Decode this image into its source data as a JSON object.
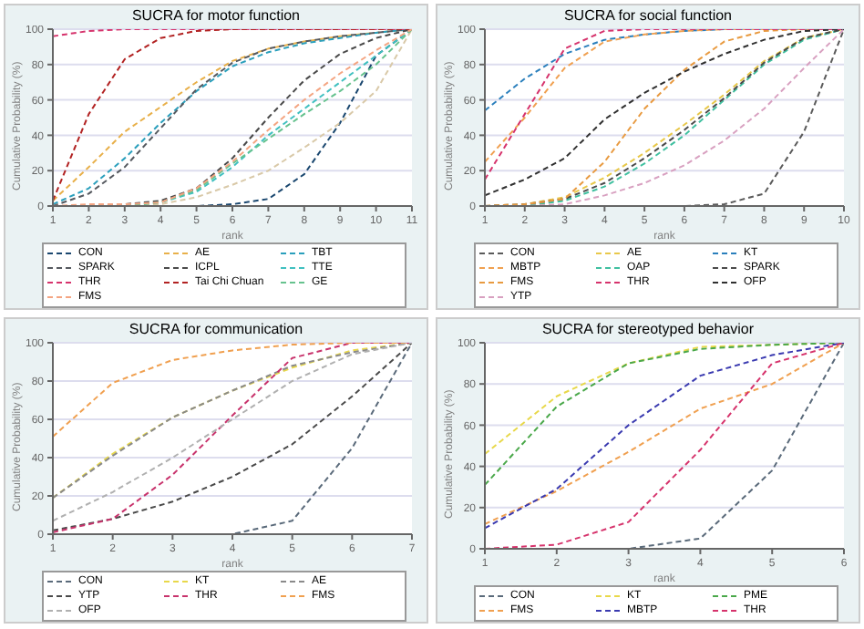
{
  "chart_data": [
    {
      "type": "line",
      "title": "SUCRA for motor function",
      "xlabel": "rank",
      "ylabel": "Cumulative Probability (%)",
      "x": [
        1,
        2,
        3,
        4,
        5,
        6,
        7,
        8,
        9,
        10,
        11
      ],
      "xlim": [
        1,
        11
      ],
      "xticks": [
        1,
        2,
        3,
        4,
        5,
        6,
        7,
        8,
        9,
        10,
        11
      ],
      "ylim": [
        0,
        100
      ],
      "yticks": [
        0,
        20,
        40,
        60,
        80,
        100
      ],
      "grid": "y",
      "legend": "bottom",
      "line_style": "dashed",
      "marker": "none",
      "series": [
        {
          "name": "CON",
          "color": "#1a476f",
          "values": [
            0,
            0,
            0,
            0,
            0,
            1,
            4,
            18,
            47,
            85,
            100
          ]
        },
        {
          "name": "AE",
          "color": "#e8b04a",
          "values": [
            3,
            22,
            42,
            56,
            70,
            82,
            89,
            93,
            96,
            98,
            100
          ]
        },
        {
          "name": "TBT",
          "color": "#2a9fbc",
          "values": [
            1,
            10,
            27,
            47,
            65,
            79,
            87,
            92,
            95,
            98,
            100
          ]
        },
        {
          "name": "SPARK",
          "color": "#55595f",
          "values": [
            0,
            7,
            22,
            44,
            66,
            81,
            89,
            93,
            96,
            98,
            100
          ]
        },
        {
          "name": "ICPL",
          "color": "#4a4a4a",
          "values": [
            0,
            0,
            1,
            3,
            10,
            27,
            50,
            71,
            86,
            95,
            100
          ]
        },
        {
          "name": "TTE",
          "color": "#40c0c0",
          "values": [
            0,
            0,
            0,
            2,
            8,
            22,
            40,
            55,
            70,
            85,
            100
          ]
        },
        {
          "name": "THR",
          "color": "#d6336c",
          "values": [
            96,
            99,
            100,
            100,
            100,
            100,
            100,
            100,
            100,
            100,
            100
          ]
        },
        {
          "color": "#d9c9a8",
          "values": [
            0,
            0,
            0,
            1,
            5,
            12,
            20,
            33,
            47,
            65,
            100
          ]
        },
        {
          "name": "Tai Chi Chuan",
          "color": "#b22222",
          "values": [
            3,
            52,
            83,
            95,
            99,
            100,
            100,
            100,
            100,
            100,
            100
          ]
        },
        {
          "name": "GE",
          "color": "#66c28e",
          "values": [
            0,
            0,
            0,
            2,
            9,
            24,
            38,
            52,
            65,
            80,
            100
          ]
        },
        {
          "name": "FMS",
          "color": "#f4a582",
          "values": [
            0,
            1,
            1,
            2,
            10,
            25,
            43,
            60,
            75,
            88,
            100
          ]
        }
      ]
    },
    {
      "type": "line",
      "title": "SUCRA for social function",
      "xlabel": "rank",
      "ylabel": "Cumulative Probability (%)",
      "x": [
        1,
        2,
        3,
        4,
        5,
        6,
        7,
        8,
        9,
        10
      ],
      "xlim": [
        1,
        10
      ],
      "xticks": [
        1,
        2,
        3,
        4,
        5,
        6,
        7,
        8,
        9,
        10
      ],
      "ylim": [
        0,
        100
      ],
      "yticks": [
        0,
        20,
        40,
        60,
        80,
        100
      ],
      "grid": "y",
      "legend": "bottom",
      "line_style": "dashed",
      "marker": "none",
      "series": [
        {
          "name": "CON",
          "color": "#5a5a5a",
          "values": [
            0,
            0,
            0,
            0,
            0,
            0,
            1,
            7,
            42,
            100
          ]
        },
        {
          "name": "AE",
          "color": "#e8c84a",
          "values": [
            0,
            1,
            5,
            16,
            30,
            46,
            63,
            82,
            95,
            100
          ]
        },
        {
          "name": "KT",
          "color": "#2a7fbc",
          "values": [
            54,
            72,
            86,
            94,
            97,
            99,
            100,
            100,
            100,
            100
          ]
        },
        {
          "name": "MBTP",
          "color": "#f0a050",
          "values": [
            25,
            50,
            78,
            93,
            97,
            99,
            100,
            100,
            100,
            100
          ]
        },
        {
          "name": "OAP",
          "color": "#40c0a0",
          "values": [
            0,
            0,
            3,
            11,
            24,
            40,
            60,
            80,
            94,
            100
          ]
        },
        {
          "name": "SPARK",
          "color": "#4a4a4a",
          "values": [
            0,
            1,
            4,
            13,
            27,
            43,
            61,
            81,
            95,
            100
          ]
        },
        {
          "name": "FMS",
          "color": "#e89a40",
          "values": [
            0,
            1,
            4,
            25,
            55,
            77,
            93,
            99,
            100,
            100
          ]
        },
        {
          "name": "THR",
          "color": "#d6336c",
          "values": [
            15,
            52,
            89,
            99,
            100,
            100,
            100,
            100,
            100,
            100
          ]
        },
        {
          "name": "OFP",
          "color": "#303030",
          "values": [
            6,
            15,
            27,
            49,
            64,
            76,
            86,
            94,
            99,
            100
          ]
        },
        {
          "name": "YTP",
          "color": "#d8a0c0",
          "values": [
            0,
            0,
            1,
            6,
            13,
            23,
            37,
            55,
            78,
            100
          ]
        }
      ]
    },
    {
      "type": "line",
      "title": "SUCRA for communication",
      "xlabel": "rank",
      "ylabel": "Cumulative Probability (%)",
      "x": [
        1,
        2,
        3,
        4,
        5,
        6,
        7
      ],
      "xlim": [
        1,
        7
      ],
      "xticks": [
        1,
        2,
        3,
        4,
        5,
        6,
        7
      ],
      "ylim": [
        0,
        100
      ],
      "yticks": [
        0,
        20,
        40,
        60,
        80,
        100
      ],
      "grid": "y",
      "legend": "bottom",
      "line_style": "dashed",
      "marker": "none",
      "series": [
        {
          "name": "CON",
          "color": "#5a6a7a",
          "values": [
            0,
            0,
            0,
            0,
            7,
            45,
            100
          ]
        },
        {
          "name": "KT",
          "color": "#e8d84a",
          "values": [
            19,
            42,
            61,
            75,
            87,
            96,
            100
          ]
        },
        {
          "name": "AE",
          "color": "#8a8a8a",
          "values": [
            19,
            41,
            61,
            75,
            88,
            95,
            100
          ]
        },
        {
          "name": "YTP",
          "color": "#4a4a4a",
          "values": [
            2,
            8,
            17,
            30,
            47,
            72,
            100
          ]
        },
        {
          "name": "THR",
          "color": "#c8336c",
          "values": [
            1,
            8,
            31,
            62,
            92,
            100,
            100
          ]
        },
        {
          "name": "FMS",
          "color": "#f0a050",
          "values": [
            51,
            79,
            91,
            96,
            99,
            100,
            100
          ]
        },
        {
          "name": "OFP",
          "color": "#b0b0b0",
          "values": [
            7,
            22,
            40,
            60,
            80,
            94,
            100
          ]
        }
      ]
    },
    {
      "type": "line",
      "title": "SUCRA for stereotyped behavior",
      "xlabel": "rank",
      "ylabel": "Cumulative Probability (%)",
      "x": [
        1,
        2,
        3,
        4,
        5,
        6
      ],
      "xlim": [
        1,
        6
      ],
      "xticks": [
        1,
        2,
        3,
        4,
        5,
        6
      ],
      "ylim": [
        0,
        100
      ],
      "yticks": [
        0,
        20,
        40,
        60,
        80,
        100
      ],
      "grid": "y",
      "legend": "bottom",
      "line_style": "dashed",
      "marker": "none",
      "series": [
        {
          "name": "CON",
          "color": "#5a6a7a",
          "values": [
            0,
            0,
            0,
            5,
            38,
            100
          ]
        },
        {
          "name": "KT",
          "color": "#e8d84a",
          "values": [
            46,
            74,
            90,
            98,
            99,
            100
          ]
        },
        {
          "name": "PME",
          "color": "#4aa84a",
          "values": [
            31,
            69,
            90,
            97,
            99,
            100
          ]
        },
        {
          "name": "FMS",
          "color": "#f0a050",
          "values": [
            12,
            28,
            47,
            68,
            80,
            100
          ]
        },
        {
          "name": "MBTP",
          "color": "#3a3ab0",
          "values": [
            10,
            29,
            60,
            84,
            94,
            100
          ]
        },
        {
          "name": "THR",
          "color": "#d6336c",
          "values": [
            0,
            2,
            13,
            48,
            90,
            100
          ]
        }
      ]
    }
  ]
}
